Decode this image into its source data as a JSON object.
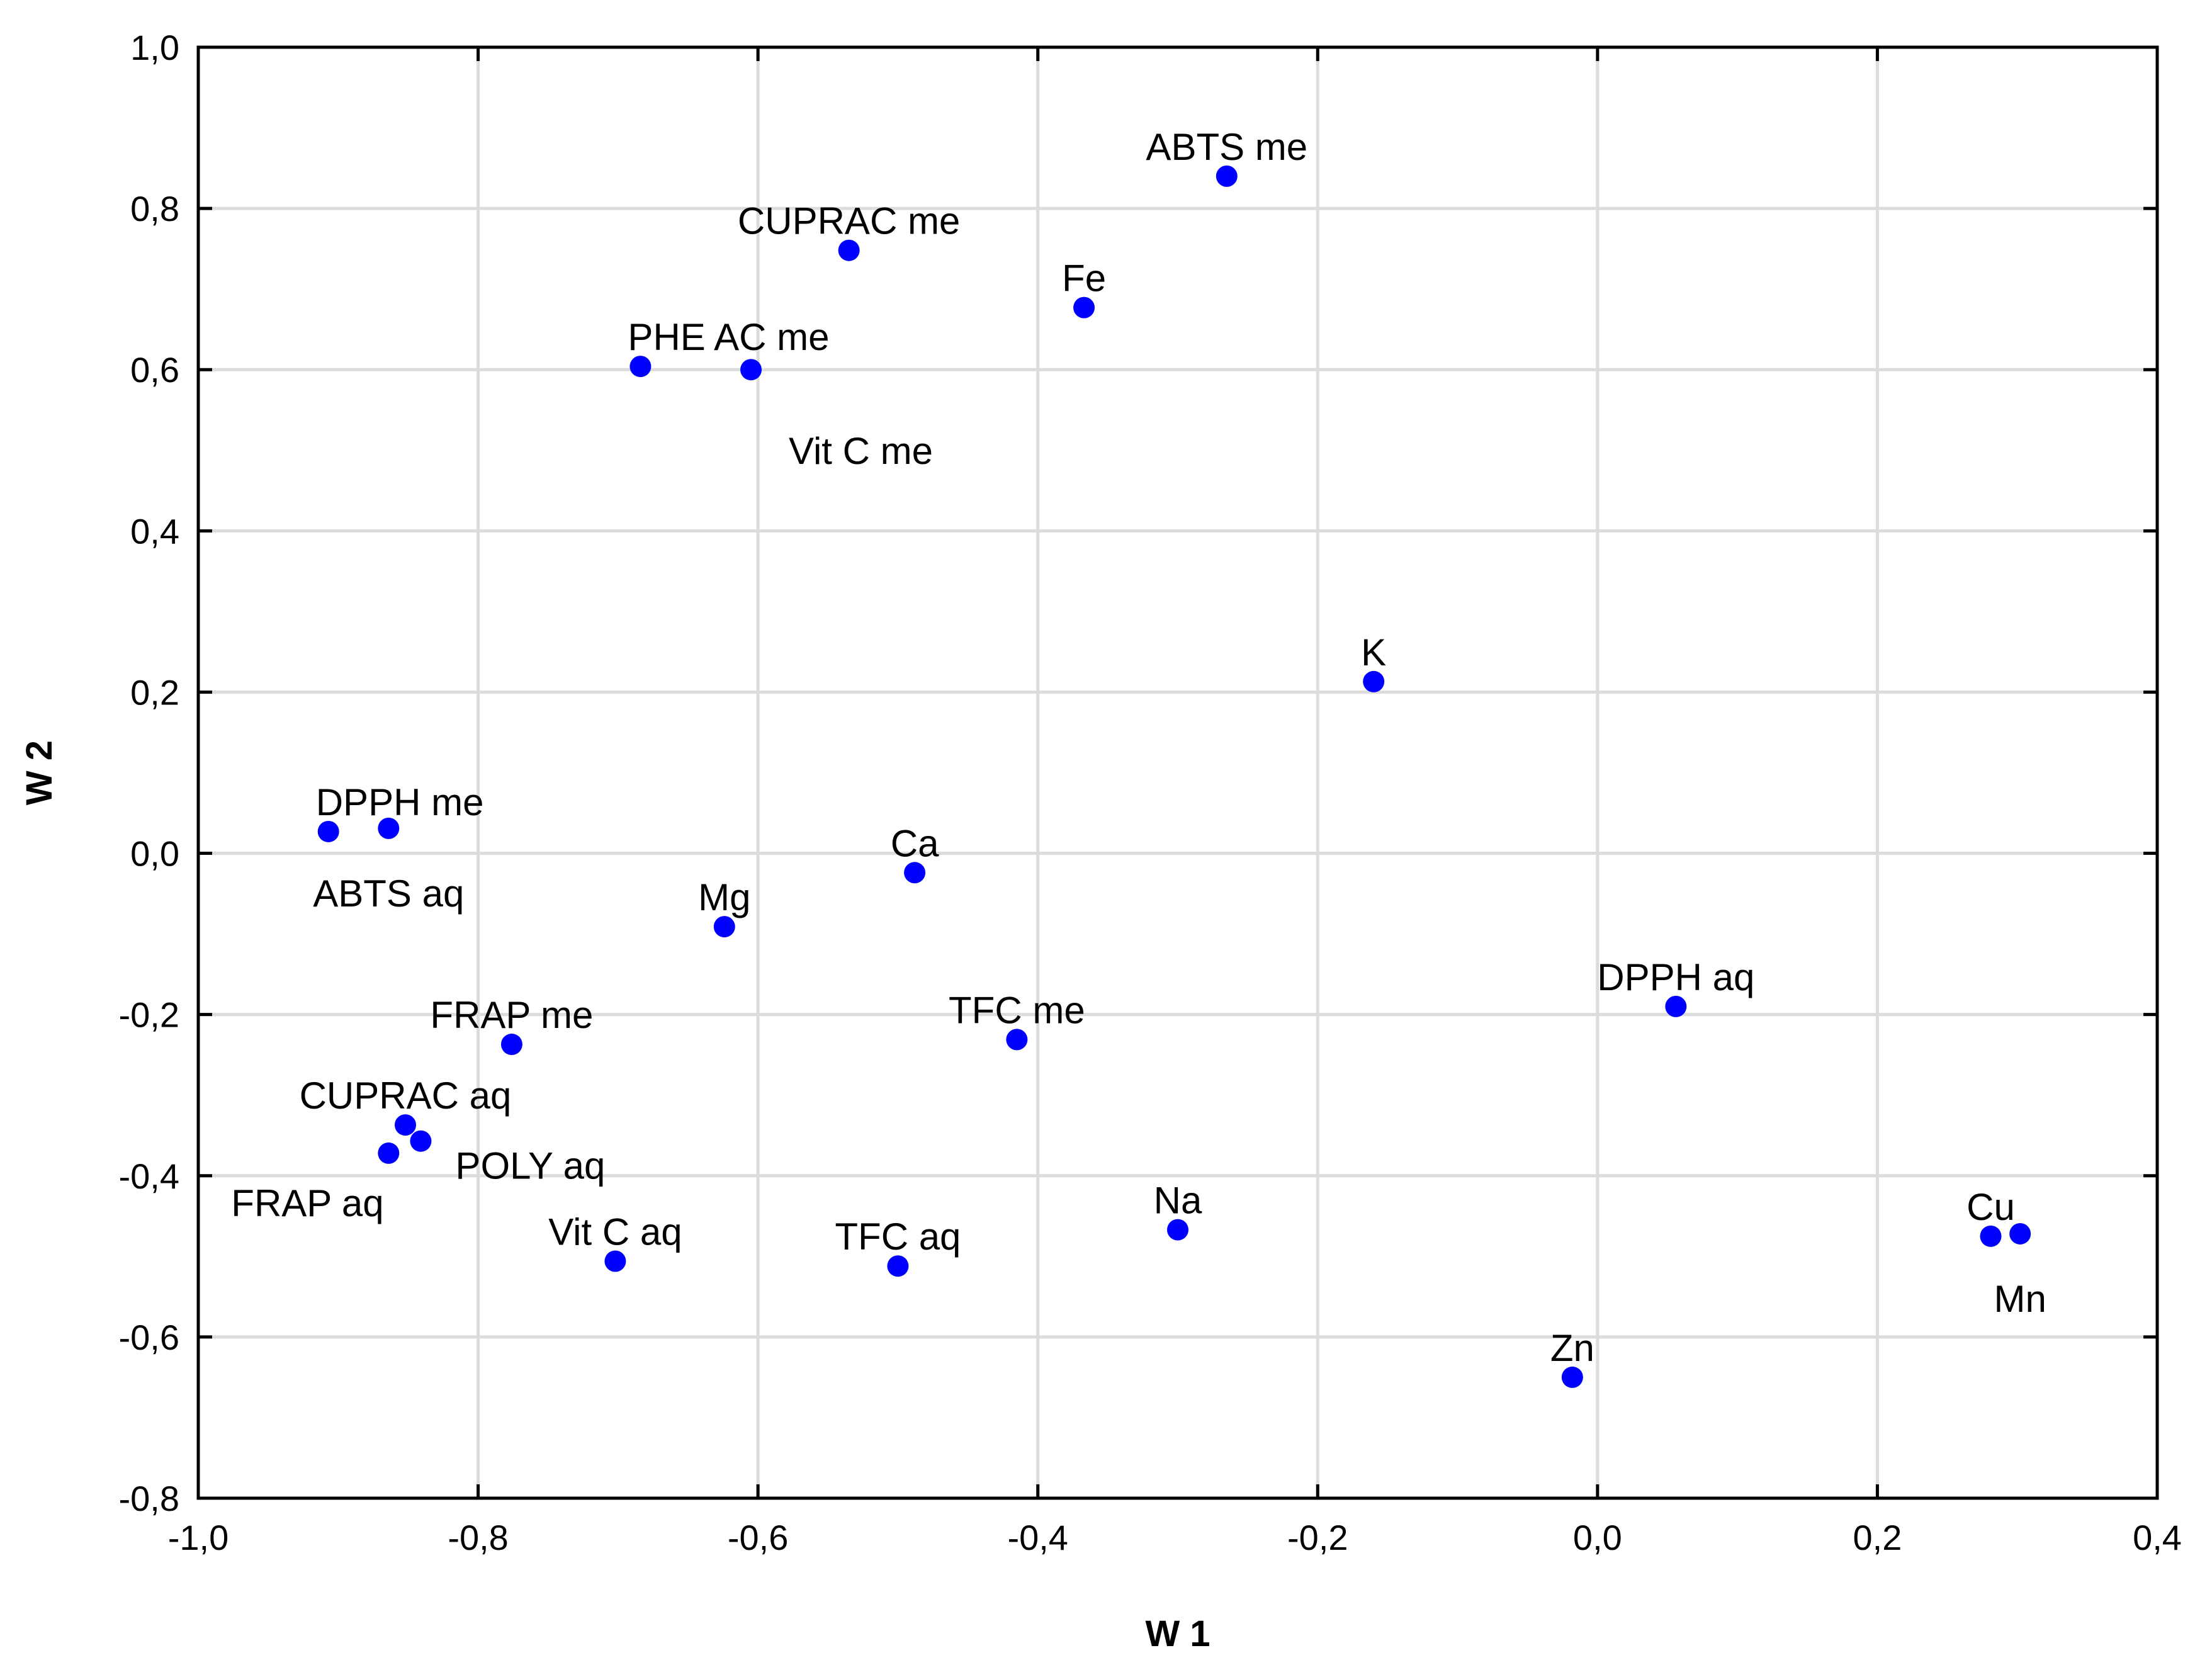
{
  "chart_data": {
    "type": "scatter",
    "title": "",
    "xlabel": "W 1",
    "ylabel": "W 2",
    "xlim": [
      -1.0,
      0.4
    ],
    "ylim": [
      -0.8,
      1.0
    ],
    "grid": true,
    "marker_color": "#0000ff",
    "x_ticks": [
      -1.0,
      -0.8,
      -0.6,
      -0.4,
      -0.2,
      0.0,
      0.2,
      0.4
    ],
    "x_tick_labels": [
      "-1,0",
      "-0,8",
      "-0,6",
      "-0,4",
      "-0,2",
      "0,0",
      "0,2",
      "0,4"
    ],
    "y_ticks": [
      -0.8,
      -0.6,
      -0.4,
      -0.2,
      0.0,
      0.2,
      0.4,
      0.6,
      0.8,
      1.0
    ],
    "y_tick_labels": [
      "-0,8",
      "-0,6",
      "-0,4",
      "-0,2",
      "0,0",
      "0,2",
      "0,4",
      "0,6",
      "0,8",
      "1,0"
    ],
    "points": [
      {
        "label": "ABTS me",
        "x": -0.265,
        "y": 0.84,
        "label_pos": "above"
      },
      {
        "label": "CUPRAC me",
        "x": -0.535,
        "y": 0.748,
        "label_pos": "above"
      },
      {
        "label": "Fe",
        "x": -0.367,
        "y": 0.677,
        "label_pos": "above"
      },
      {
        "label": "PHE AC me",
        "x": -0.684,
        "y": 0.604,
        "label_pos": "above-right"
      },
      {
        "label": "Vit C me",
        "x": -0.605,
        "y": 0.6,
        "label_pos": "below-right"
      },
      {
        "label": "K",
        "x": -0.16,
        "y": 0.213,
        "label_pos": "above"
      },
      {
        "label": "DPPH me",
        "x": -0.907,
        "y": 0.027,
        "label_pos": "above-right"
      },
      {
        "label": "ABTS aq",
        "x": -0.864,
        "y": 0.031,
        "label_pos": "below"
      },
      {
        "label": "Ca",
        "x": -0.488,
        "y": -0.024,
        "label_pos": "above"
      },
      {
        "label": "Mg",
        "x": -0.624,
        "y": -0.091,
        "label_pos": "above"
      },
      {
        "label": "DPPH aq",
        "x": 0.056,
        "y": -0.19,
        "label_pos": "above"
      },
      {
        "label": "TFC me",
        "x": -0.415,
        "y": -0.231,
        "label_pos": "above"
      },
      {
        "label": "FRAP me",
        "x": -0.776,
        "y": -0.237,
        "label_pos": "above"
      },
      {
        "label": "CUPRAC aq",
        "x": -0.852,
        "y": -0.337,
        "label_pos": "above"
      },
      {
        "label": "POLY aq",
        "x": -0.841,
        "y": -0.357,
        "label_pos": "right"
      },
      {
        "label": "FRAP aq",
        "x": -0.864,
        "y": -0.372,
        "label_pos": "below-left"
      },
      {
        "label": "Na",
        "x": -0.3,
        "y": -0.467,
        "label_pos": "above"
      },
      {
        "label": "Vit C aq",
        "x": -0.702,
        "y": -0.506,
        "label_pos": "above"
      },
      {
        "label": "TFC aq",
        "x": -0.5,
        "y": -0.512,
        "label_pos": "above"
      },
      {
        "label": "Cu",
        "x": 0.281,
        "y": -0.475,
        "label_pos": "above"
      },
      {
        "label": "Mn",
        "x": 0.302,
        "y": -0.472,
        "label_pos": "below"
      },
      {
        "label": "Zn",
        "x": -0.018,
        "y": -0.65,
        "label_pos": "above"
      }
    ]
  }
}
